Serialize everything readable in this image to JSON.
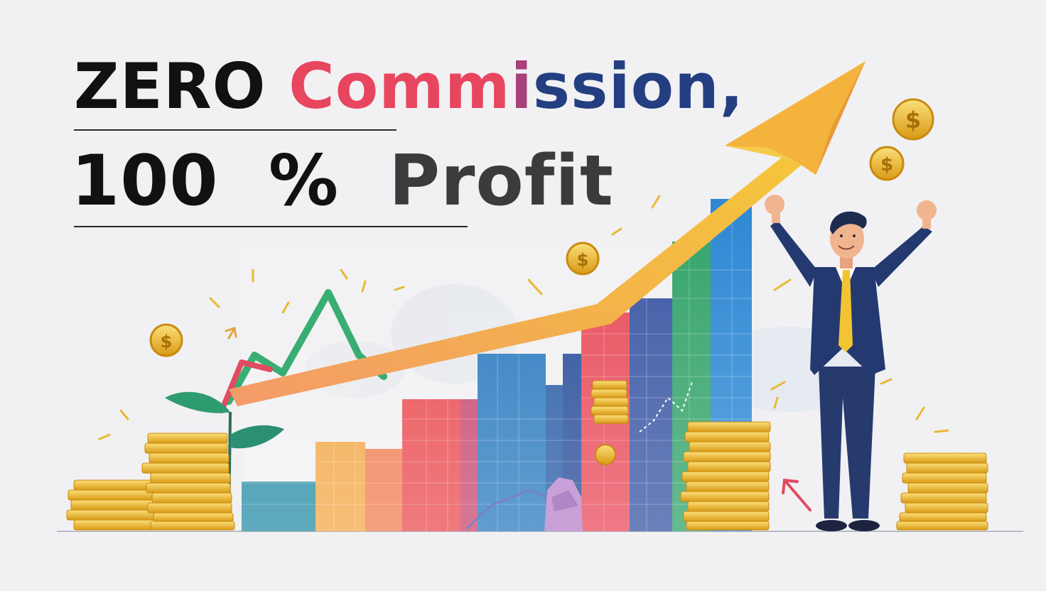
{
  "headline": {
    "line1": {
      "zero": "ZERO",
      "comm_a": "Comm",
      "comm_b": "i",
      "comm_c": "ssion,",
      "sep": " "
    },
    "line2": {
      "num": "100",
      "pct": "%",
      "profit": "Profit"
    }
  },
  "icons": {
    "coin_symbol": "$"
  },
  "colors": {
    "background": "#f1f1f3",
    "pink": "#e8455f",
    "navy": "#233f82",
    "gold": "#f2b82a",
    "arrow": "#f3b33d",
    "suit": "#24396f",
    "tie": "#f2c431",
    "leaf": "#2f9c6f"
  }
}
